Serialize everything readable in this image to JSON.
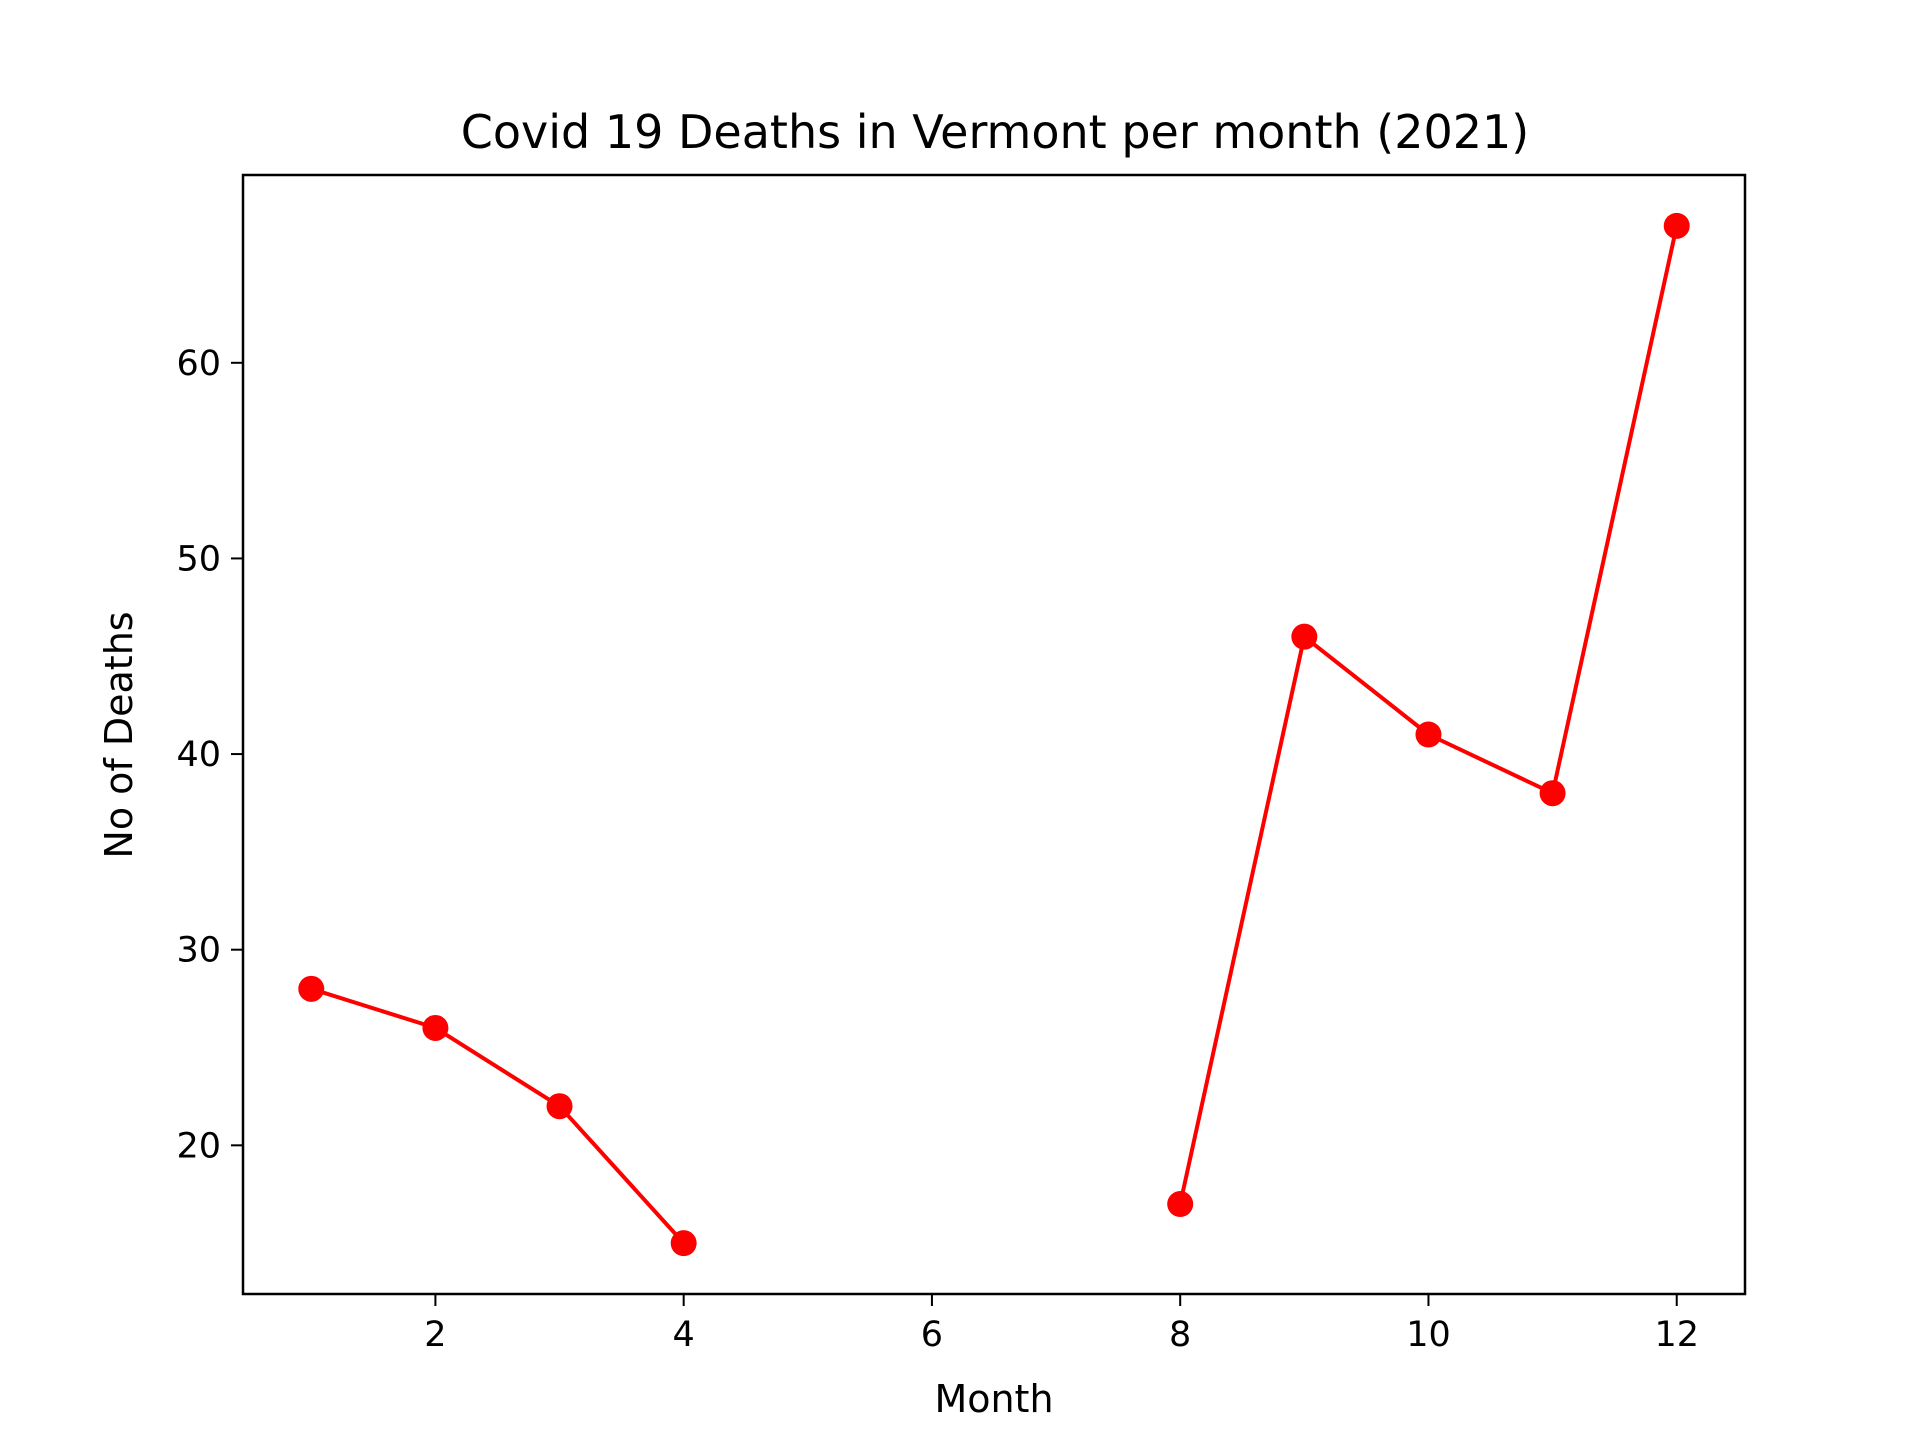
{
  "chart_data": {
    "type": "line",
    "title": "Covid 19 Deaths in Vermont per month (2021)",
    "xlabel": "Month",
    "ylabel": "No of Deaths",
    "xlim": [
      0.45,
      12.55
    ],
    "ylim": [
      12.4,
      69.6
    ],
    "xticks": [
      2,
      4,
      6,
      8,
      10,
      12
    ],
    "yticks": [
      20,
      30,
      40,
      50,
      60
    ],
    "grid": false,
    "legend": "none",
    "series": [
      {
        "color": "#ff0000",
        "marker": "circle",
        "points": [
          {
            "x": 1,
            "y": 28
          },
          {
            "x": 2,
            "y": 26
          },
          {
            "x": 3,
            "y": 22
          },
          {
            "x": 4,
            "y": 15
          },
          {
            "x": 5,
            "y": null
          },
          {
            "x": 6,
            "y": null
          },
          {
            "x": 7,
            "y": null
          },
          {
            "x": 8,
            "y": 17
          },
          {
            "x": 9,
            "y": 46
          },
          {
            "x": 10,
            "y": 41
          },
          {
            "x": 11,
            "y": 38
          },
          {
            "x": 12,
            "y": 67
          }
        ]
      }
    ]
  }
}
